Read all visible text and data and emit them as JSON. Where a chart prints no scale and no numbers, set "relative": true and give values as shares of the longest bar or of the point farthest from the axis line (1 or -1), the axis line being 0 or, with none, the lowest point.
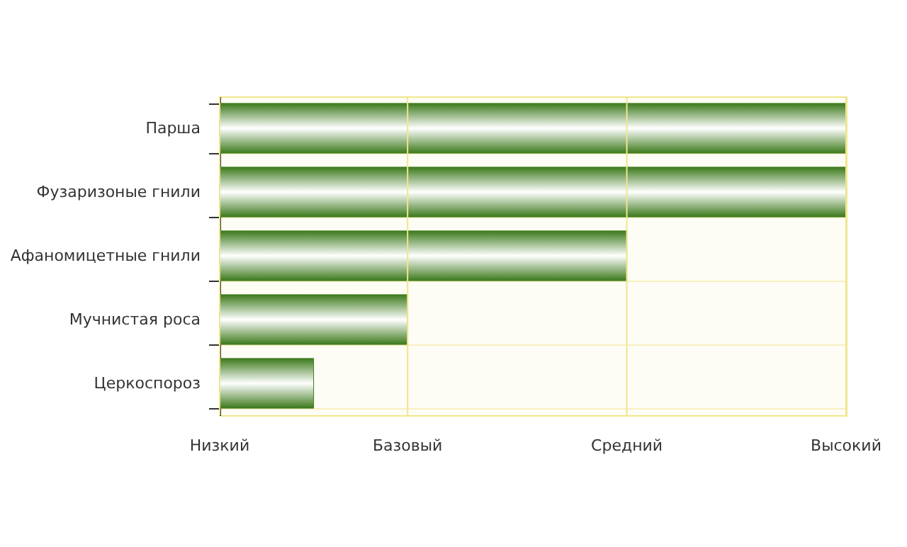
{
  "chart_data": {
    "type": "bar",
    "orientation": "horizontal",
    "relative": true,
    "categories": [
      "Парша",
      "Фузаризоные гнили",
      "Афаномицетные гнили",
      "Мучнистая роса",
      "Церкоспороз"
    ],
    "values": [
      1,
      1,
      0.65,
      0.3,
      0.15
    ],
    "color": "#3d7a1c",
    "ref_lines": [
      {
        "axis": "x",
        "value": 0,
        "label": "Низкий",
        "color": "#f0e68c"
      },
      {
        "axis": "x",
        "value": 0.3,
        "label": "Базовый",
        "color": "#f0e68c"
      },
      {
        "axis": "x",
        "value": 0.65,
        "label": "Средний",
        "color": "#f0e68c"
      },
      {
        "axis": "x",
        "value": 1,
        "label": "Высокий",
        "color": "#f0e68c"
      }
    ],
    "grid": "y"
  }
}
